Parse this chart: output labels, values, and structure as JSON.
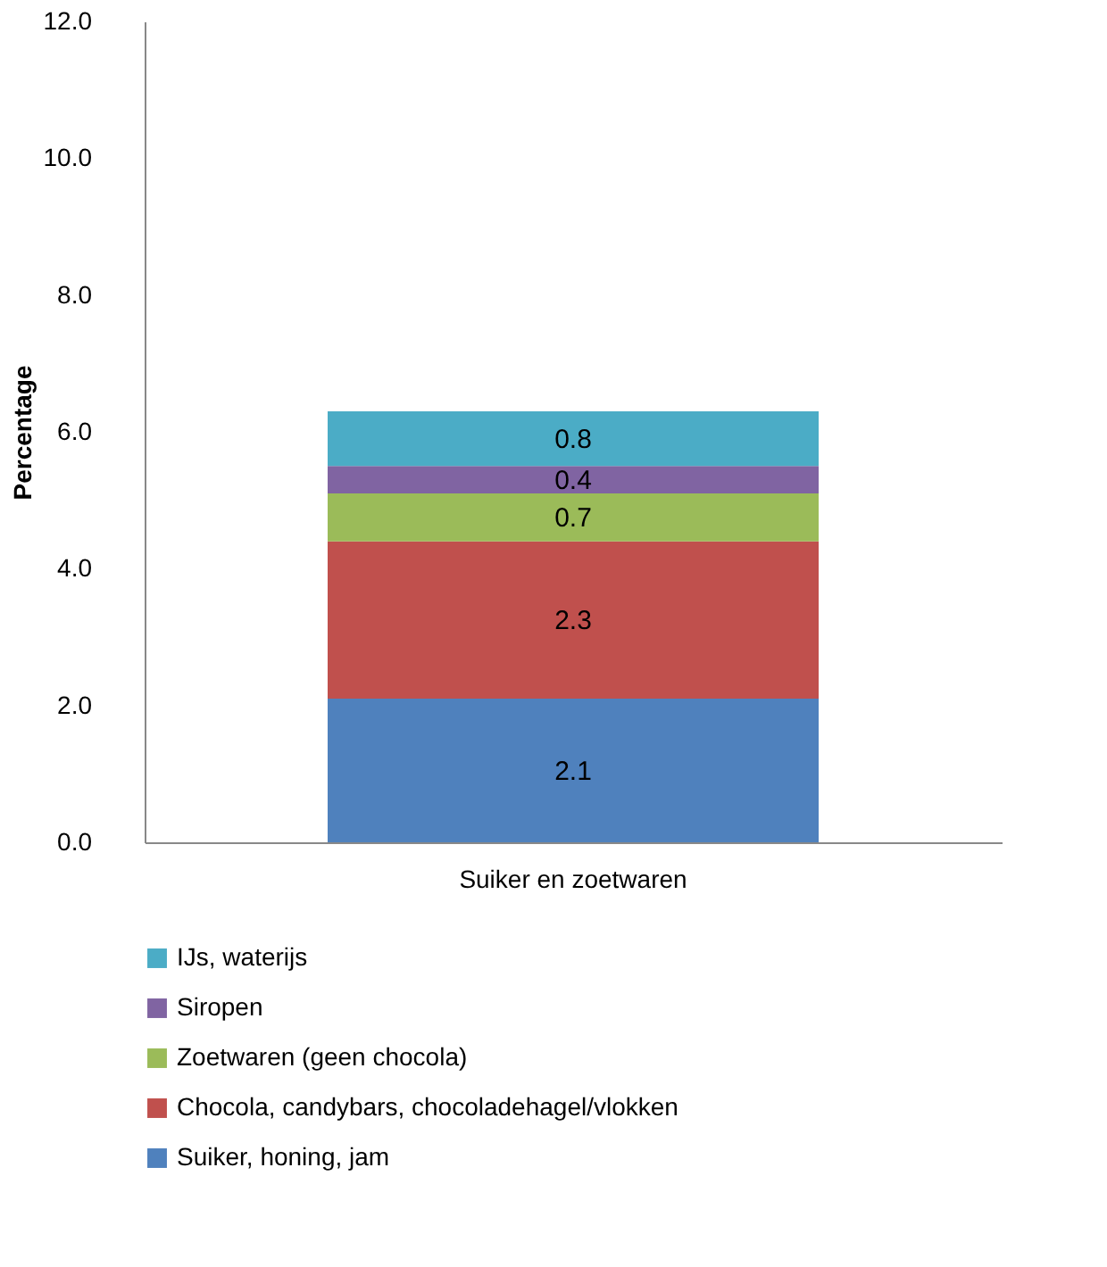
{
  "chart_data": {
    "type": "bar",
    "stacked": true,
    "ylabel": "Percentage",
    "categories": [
      "Suiker en zoetwaren"
    ],
    "series": [
      {
        "name": "Suiker, honing, jam",
        "color": "#4f81bd",
        "values": [
          2.1
        ]
      },
      {
        "name": "Chocola, candybars, chocoladehagel/vlokken",
        "color": "#c0504d",
        "values": [
          2.3
        ]
      },
      {
        "name": "Zoetwaren (geen chocola)",
        "color": "#9bbb59",
        "values": [
          0.7
        ]
      },
      {
        "name": "Siropen",
        "color": "#8064a2",
        "values": [
          0.4
        ]
      },
      {
        "name": "IJs, waterijs",
        "color": "#4bacc6",
        "values": [
          0.8
        ]
      }
    ],
    "ylim": [
      0,
      12
    ],
    "yticks": [
      {
        "value": 0,
        "label": "0.0"
      },
      {
        "value": 2,
        "label": "2.0"
      },
      {
        "value": 4,
        "label": "4.0"
      },
      {
        "value": 6,
        "label": "6.0"
      },
      {
        "value": 8,
        "label": "8.0"
      },
      {
        "value": 10,
        "label": "10.0"
      },
      {
        "value": 12,
        "label": "12.0"
      }
    ],
    "data_labels": true,
    "grid": false,
    "legend": "bottom"
  }
}
